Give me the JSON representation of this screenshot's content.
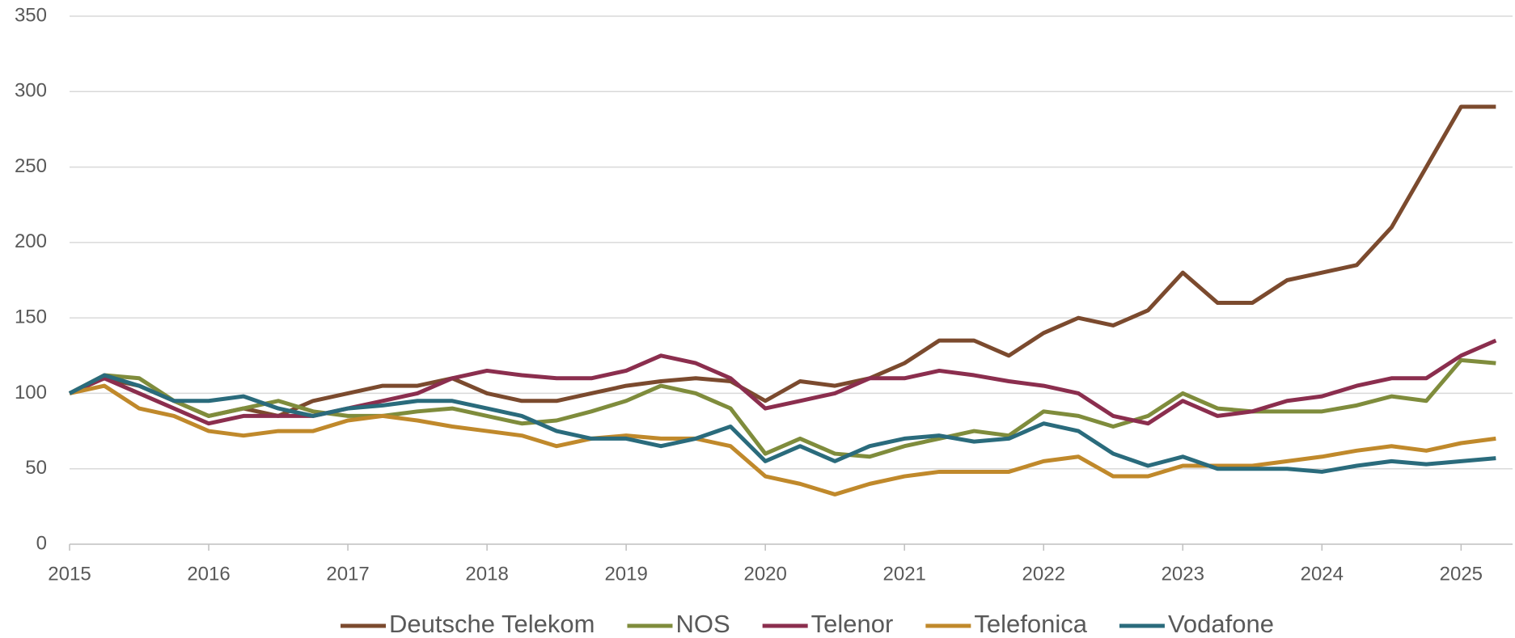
{
  "chart_data": {
    "type": "line",
    "x": [
      2015,
      2015.25,
      2015.5,
      2015.75,
      2016,
      2016.25,
      2016.5,
      2016.75,
      2017,
      2017.25,
      2017.5,
      2017.75,
      2018,
      2018.25,
      2018.5,
      2018.75,
      2019,
      2019.25,
      2019.5,
      2019.75,
      2020,
      2020.25,
      2020.5,
      2020.75,
      2021,
      2021.25,
      2021.5,
      2021.75,
      2022,
      2022.25,
      2022.5,
      2022.75,
      2023,
      2023.25,
      2023.5,
      2023.75,
      2024,
      2024.25,
      2024.5,
      2024.75,
      2025,
      2025.25
    ],
    "series": [
      {
        "name": "Deutsche Telekom",
        "color": "#7b4a2e",
        "values": [
          100,
          110,
          105,
          95,
          85,
          90,
          85,
          95,
          100,
          105,
          105,
          110,
          100,
          95,
          95,
          100,
          105,
          108,
          110,
          108,
          95,
          108,
          105,
          110,
          120,
          135,
          135,
          125,
          140,
          150,
          145,
          155,
          180,
          160,
          160,
          175,
          180,
          185,
          210,
          250,
          290,
          290
        ]
      },
      {
        "name": "NOS",
        "color": "#7f8c3c",
        "values": [
          100,
          112,
          110,
          95,
          85,
          90,
          95,
          88,
          85,
          85,
          88,
          90,
          85,
          80,
          82,
          88,
          95,
          105,
          100,
          90,
          60,
          70,
          60,
          58,
          65,
          70,
          75,
          72,
          88,
          85,
          78,
          85,
          100,
          90,
          88,
          88,
          88,
          92,
          98,
          95,
          122,
          120
        ]
      },
      {
        "name": "Telenor",
        "color": "#8b2e4e",
        "values": [
          100,
          110,
          100,
          90,
          80,
          85,
          85,
          85,
          90,
          95,
          100,
          110,
          115,
          112,
          110,
          110,
          115,
          125,
          120,
          110,
          90,
          95,
          100,
          110,
          110,
          115,
          112,
          108,
          105,
          100,
          85,
          80,
          95,
          85,
          88,
          95,
          98,
          105,
          110,
          110,
          125,
          135
        ]
      },
      {
        "name": "Telefonica",
        "color": "#c0892b",
        "values": [
          100,
          105,
          90,
          85,
          75,
          72,
          75,
          75,
          82,
          85,
          82,
          78,
          75,
          72,
          65,
          70,
          72,
          70,
          70,
          65,
          45,
          40,
          33,
          40,
          45,
          48,
          48,
          48,
          55,
          58,
          45,
          45,
          52,
          52,
          52,
          55,
          58,
          62,
          65,
          62,
          67,
          70
        ]
      },
      {
        "name": "Vodafone",
        "color": "#2a6b7c",
        "values": [
          100,
          112,
          105,
          95,
          95,
          98,
          90,
          85,
          90,
          92,
          95,
          95,
          90,
          85,
          75,
          70,
          70,
          65,
          70,
          78,
          55,
          65,
          55,
          65,
          70,
          72,
          68,
          70,
          80,
          75,
          60,
          52,
          58,
          50,
          50,
          50,
          48,
          52,
          55,
          53,
          55,
          57
        ]
      }
    ],
    "xlim": [
      2015,
      2025.37
    ],
    "xticks": [
      2015,
      2016,
      2017,
      2018,
      2019,
      2020,
      2021,
      2022,
      2023,
      2024,
      2025
    ],
    "ylim": [
      0,
      350
    ],
    "yticks": [
      0,
      50,
      100,
      150,
      200,
      250,
      300,
      350
    ],
    "grid": true,
    "legend": "bottom"
  }
}
